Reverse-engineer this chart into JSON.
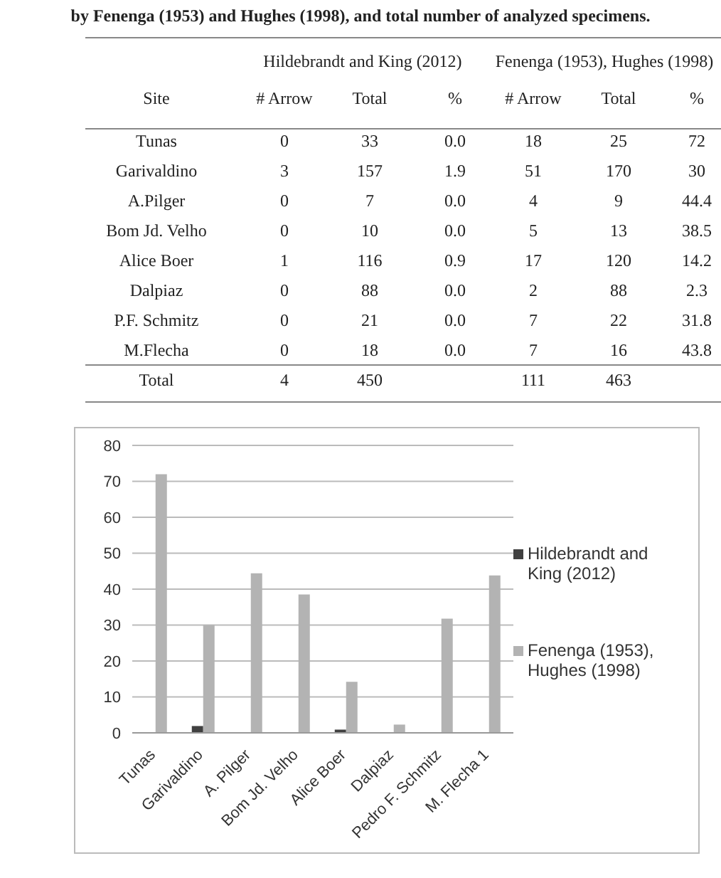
{
  "chart_data": [
    {
      "type": "other",
      "title": "by Fenenga (1953) and Hughes (1998), and total number of analyzed specimens.",
      "annotations": [
        "Hildebrandt and King (2012)",
        "Fenenga (1953), Hughes (1998)",
        "Site",
        "# Arrow",
        "Total",
        "%",
        "# Arrow",
        "Total",
        "%",
        "Tunas",
        "0",
        "33",
        "0.0",
        "18",
        "25",
        "72",
        "Garivaldino",
        "3",
        "157",
        "1.9",
        "51",
        "170",
        "30",
        "A.Pilger",
        "0",
        "7",
        "0.0",
        "4",
        "9",
        "44.4",
        "Bom Jd. Velho",
        "0",
        "10",
        "0.0",
        "5",
        "13",
        "38.5",
        "Alice Boer",
        "1",
        "116",
        "0.9",
        "17",
        "120",
        "14.2",
        "Dalpiaz",
        "0",
        "88",
        "0.0",
        "2",
        "88",
        "2.3",
        "P.F. Schmitz",
        "0",
        "21",
        "0.0",
        "7",
        "22",
        "31.8",
        "M.Flecha",
        "0",
        "18",
        "0.0",
        "7",
        "16",
        "43.8",
        "Total",
        "4",
        "450",
        "111",
        "463"
      ]
    },
    {
      "type": "bar",
      "categories": [
        "Tunas",
        "Garivaldino",
        "A. Pilger",
        "Bom Jd. Velho",
        "Alice Boer",
        "Dalpiaz",
        "Pedro F. Schmitz",
        "M. Flecha 1"
      ],
      "series": [
        {
          "name": "Hildebrandt and King (2012)",
          "color": "#404040",
          "values": [
            0,
            1.9,
            0,
            0,
            0.9,
            0,
            0,
            0
          ]
        },
        {
          "name": "Fenenga (1953), Hughes (1998)",
          "color": "#b3b3b3",
          "values": [
            72,
            30,
            44.4,
            38.5,
            14.2,
            2.3,
            31.8,
            43.8
          ]
        }
      ],
      "ylim": [
        0,
        80
      ],
      "yticks": [
        0,
        10,
        20,
        30,
        40,
        50,
        60,
        70,
        80
      ],
      "grid": "y",
      "legend": "right"
    }
  ]
}
